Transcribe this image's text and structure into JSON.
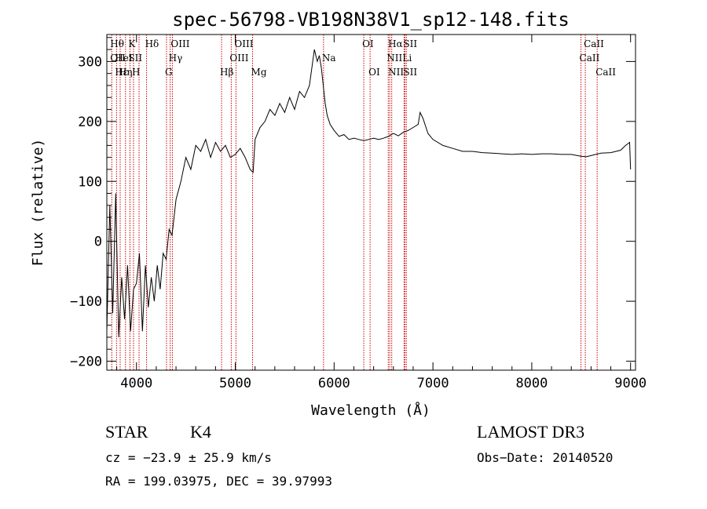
{
  "chart_data": {
    "type": "line",
    "title": "spec-56798-VB198N38V1_sp12-148.fits",
    "xlabel": "Wavelength (Å)",
    "ylabel": "Flux (relative)",
    "xlim": [
      3700,
      9050
    ],
    "ylim": [
      -215,
      345
    ],
    "xticks": [
      4000,
      5000,
      6000,
      7000,
      8000,
      9000
    ],
    "yticks": [
      -200,
      -100,
      0,
      100,
      200,
      300
    ],
    "line_color": "#000000",
    "marker_color": "#cc0000",
    "series": [
      {
        "x": [
          3700,
          3730,
          3760,
          3790,
          3820,
          3850,
          3880,
          3910,
          3940,
          3970,
          4000,
          4030,
          4060,
          4090,
          4120,
          4150,
          4180,
          4210,
          4240,
          4270,
          4300,
          4330,
          4360,
          4400,
          4450,
          4500,
          4550,
          4600,
          4650,
          4700,
          4750,
          4800,
          4850,
          4900,
          4950,
          5000,
          5050,
          5100,
          5150,
          5180,
          5200,
          5250,
          5300,
          5350,
          5400,
          5450,
          5500,
          5550,
          5600,
          5650,
          5700,
          5750,
          5800,
          5830,
          5850,
          5870,
          5890,
          5910,
          5930,
          5960,
          6000,
          6050,
          6100,
          6150,
          6200,
          6250,
          6300,
          6350,
          6400,
          6450,
          6500,
          6550,
          6600,
          6650,
          6700,
          6750,
          6800,
          6850,
          6870,
          6900,
          6950,
          7000,
          7100,
          7200,
          7300,
          7400,
          7500,
          7600,
          7700,
          7800,
          7900,
          8000,
          8100,
          8200,
          8300,
          8400,
          8500,
          8550,
          8600,
          8700,
          8800,
          8900,
          8950,
          8990,
          9000
        ],
        "y": [
          -150,
          60,
          -120,
          80,
          -160,
          -60,
          -130,
          -40,
          -150,
          -80,
          -70,
          -20,
          -150,
          -40,
          -110,
          -60,
          -100,
          -40,
          -80,
          -20,
          -30,
          20,
          10,
          70,
          100,
          140,
          120,
          160,
          150,
          170,
          140,
          165,
          150,
          160,
          140,
          145,
          155,
          140,
          120,
          115,
          170,
          190,
          200,
          220,
          210,
          230,
          215,
          240,
          220,
          250,
          240,
          260,
          320,
          300,
          310,
          290,
          260,
          230,
          210,
          195,
          185,
          175,
          178,
          170,
          172,
          170,
          168,
          170,
          172,
          170,
          172,
          175,
          180,
          176,
          182,
          185,
          190,
          195,
          215,
          205,
          180,
          170,
          160,
          155,
          150,
          150,
          148,
          147,
          146,
          145,
          146,
          145,
          146,
          146,
          145,
          145,
          142,
          141,
          143,
          147,
          148,
          152,
          160,
          165,
          120
        ]
      }
    ],
    "lines": [
      {
        "x": 3750,
        "labels": [
          "Hθ",
          "OII",
          ""
        ]
      },
      {
        "x": 3798,
        "labels": [
          "",
          "HeI",
          "Hε"
        ]
      },
      {
        "x": 3835,
        "labels": [
          "",
          "",
          "Hη"
        ]
      },
      {
        "x": 3889,
        "labels": [
          "",
          "",
          ""
        ]
      },
      {
        "x": 3934,
        "labels": [
          "K",
          "SII",
          ""
        ]
      },
      {
        "x": 3970,
        "labels": [
          "",
          "",
          "H"
        ]
      },
      {
        "x": 4026,
        "labels": [
          "",
          "",
          ""
        ]
      },
      {
        "x": 4102,
        "labels": [
          "Hδ",
          "",
          ""
        ]
      },
      {
        "x": 4304,
        "labels": [
          "",
          "",
          "G"
        ]
      },
      {
        "x": 4341,
        "labels": [
          "",
          "Hγ",
          ""
        ]
      },
      {
        "x": 4363,
        "labels": [
          "OIII",
          "",
          ""
        ]
      },
      {
        "x": 4861,
        "labels": [
          "",
          "",
          "Hβ"
        ]
      },
      {
        "x": 4959,
        "labels": [
          "",
          "OIII",
          ""
        ]
      },
      {
        "x": 5007,
        "labels": [
          "OIII",
          "",
          ""
        ]
      },
      {
        "x": 5175,
        "labels": [
          "",
          "",
          "Mg"
        ]
      },
      {
        "x": 5893,
        "labels": [
          "",
          "Na",
          ""
        ]
      },
      {
        "x": 6300,
        "labels": [
          "OI",
          "",
          ""
        ]
      },
      {
        "x": 6364,
        "labels": [
          "",
          "",
          "OI"
        ]
      },
      {
        "x": 6548,
        "labels": [
          "",
          "NII",
          ""
        ]
      },
      {
        "x": 6563,
        "labels": [
          "Hα",
          "",
          "NII"
        ]
      },
      {
        "x": 6583,
        "labels": [
          "",
          "",
          ""
        ]
      },
      {
        "x": 6708,
        "labels": [
          "",
          "Li",
          ""
        ]
      },
      {
        "x": 6716,
        "labels": [
          "SII",
          "",
          "SII"
        ]
      },
      {
        "x": 6731,
        "labels": [
          "",
          "",
          ""
        ]
      },
      {
        "x": 8498,
        "labels": [
          "",
          "CaII",
          ""
        ]
      },
      {
        "x": 8542,
        "labels": [
          "CaII",
          "",
          ""
        ]
      },
      {
        "x": 8662,
        "labels": [
          "",
          "",
          "CaII"
        ]
      }
    ]
  },
  "info": {
    "object_class": "STAR",
    "subclass": "K4",
    "survey": "LAMOST DR3",
    "cz": "cz = −23.9 ± 25.9 km/s",
    "obs_date": "Obs−Date: 20140520",
    "coords": "RA = 199.03975, DEC =  39.97993"
  }
}
